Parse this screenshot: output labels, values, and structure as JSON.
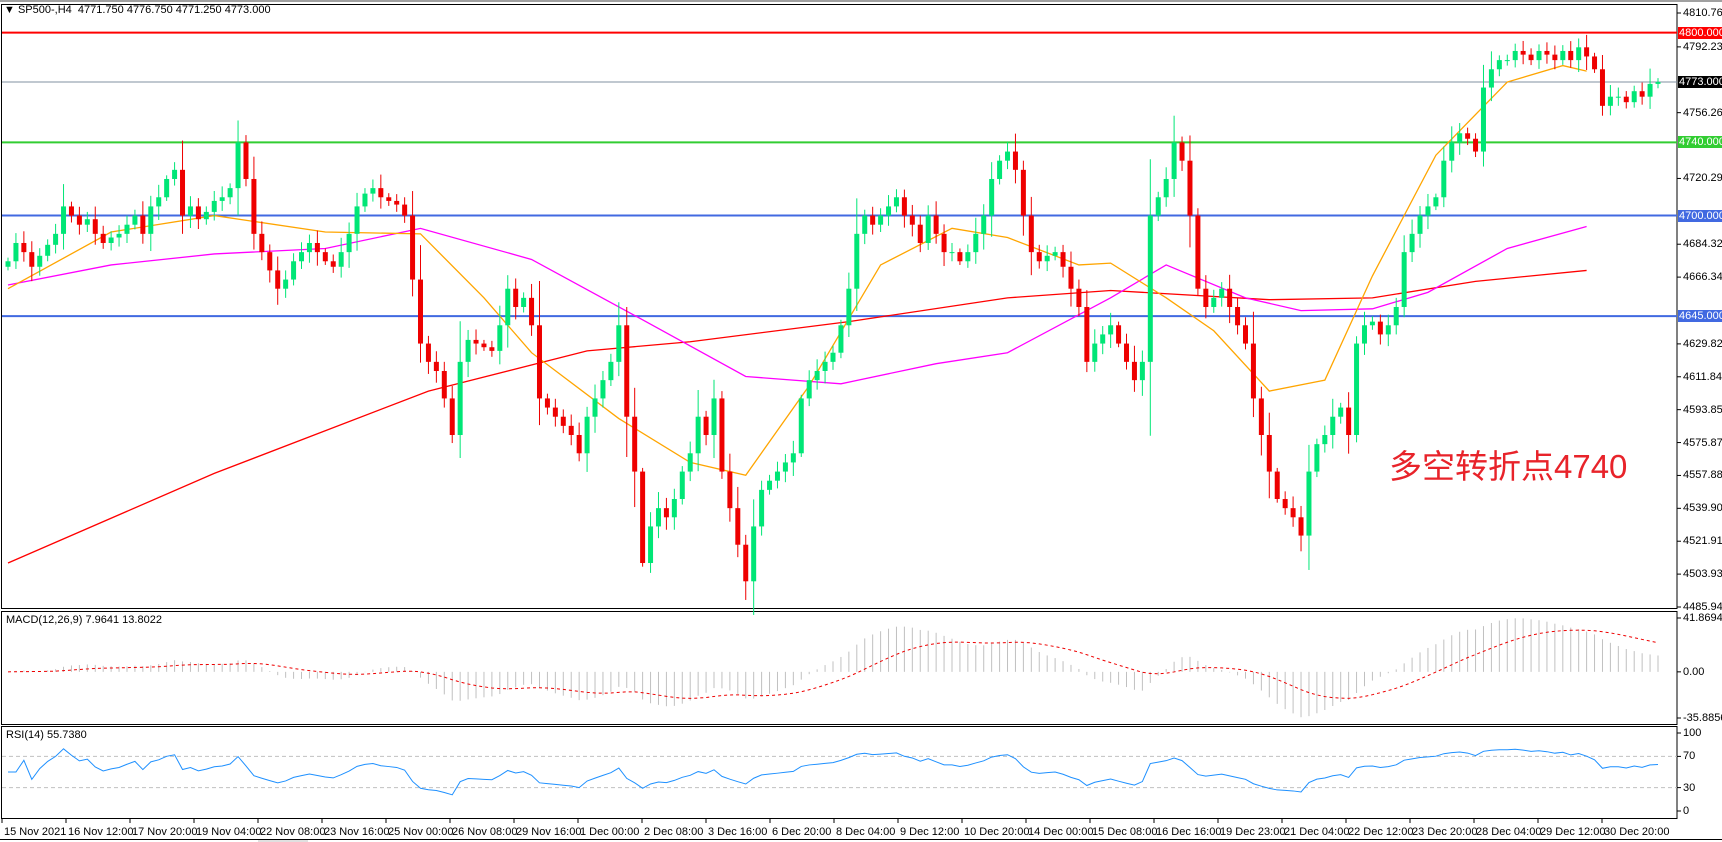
{
  "header": {
    "symbol": "SP500-,H4",
    "ohlc": "4771.750 4776.750 4771.250 4773.000"
  },
  "annotation": "多空转折点4740",
  "colors": {
    "bull": "#00e676",
    "bear": "#ee0000",
    "ma_fast": "#ffa500",
    "ma_mid": "#ff00ff",
    "ma_slow": "#ff0000",
    "macd_hist": "#c0c0c0",
    "macd_signal": "#ee0000",
    "rsi": "#1e90ff"
  },
  "chart_data": [
    {
      "type": "candlestick",
      "title": "SP500-,H4",
      "ylim": [
        4485.945,
        4810.765
      ],
      "y_ticks": [
        "4810.765",
        "4792.235",
        "4756.265",
        "4720.295",
        "4684.325",
        "4666.340",
        "4629.825",
        "4611.840",
        "4593.855",
        "4575.870",
        "4557.885",
        "4539.900",
        "4521.915",
        "4503.930",
        "4485.945"
      ],
      "x_ticks": [
        "15 Nov 2021",
        "16 Nov 12:00",
        "17 Nov 20:00",
        "19 Nov 04:00",
        "22 Nov 08:00",
        "23 Nov 16:00",
        "25 Nov 00:00",
        "26 Nov 08:00",
        "29 Nov 16:00",
        "1 Dec 00:00",
        "2 Dec 08:00",
        "3 Dec 16:00",
        "6 Dec 20:00",
        "8 Dec 04:00",
        "9 Dec 12:00",
        "10 Dec 20:00",
        "14 Dec 00:00",
        "15 Dec 08:00",
        "16 Dec 16:00",
        "19 Dec 23:00",
        "21 Dec 04:00",
        "22 Dec 12:00",
        "23 Dec 20:00",
        "28 Dec 04:00",
        "29 Dec 12:00",
        "30 Dec 20:00"
      ],
      "closes": [
        4675,
        4685,
        4680,
        4672,
        4678,
        4684,
        4690,
        4705,
        4700,
        4695,
        4698,
        4690,
        4685,
        4688,
        4690,
        4695,
        4700,
        4690,
        4705,
        4710,
        4720,
        4725,
        4700,
        4705,
        4698,
        4702,
        4708,
        4710,
        4715,
        4740,
        4720,
        4690,
        4680,
        4670,
        4660,
        4665,
        4675,
        4680,
        4685,
        4680,
        4675,
        4672,
        4680,
        4690,
        4705,
        4712,
        4715,
        4710,
        4708,
        4706,
        4700,
        4665,
        4630,
        4620,
        4615,
        4600,
        4580,
        4620,
        4632,
        4630,
        4628,
        4626,
        4640,
        4660,
        4650,
        4655,
        4640,
        4600,
        4595,
        4590,
        4585,
        4580,
        4570,
        4590,
        4600,
        4610,
        4620,
        4640,
        4590,
        4560,
        4510,
        4530,
        4540,
        4535,
        4545,
        4560,
        4570,
        4590,
        4580,
        4600,
        4560,
        4540,
        4520,
        4500,
        4530,
        4550,
        4555,
        4560,
        4565,
        4570,
        4600,
        4610,
        4615,
        4620,
        4625,
        4640,
        4660,
        4690,
        4700,
        4695,
        4700,
        4705,
        4710,
        4700,
        4695,
        4685,
        4700,
        4690,
        4680,
        4680,
        4675,
        4680,
        4690,
        4700,
        4720,
        4730,
        4735,
        4725,
        4700,
        4680,
        4675,
        4678,
        4680,
        4672,
        4660,
        4650,
        4620,
        4630,
        4635,
        4640,
        4630,
        4620,
        4610,
        4620,
        4700,
        4710,
        4720,
        4740,
        4730,
        4700,
        4660,
        4650,
        4655,
        4660,
        4650,
        4640,
        4630,
        4600,
        4580,
        4560,
        4545,
        4540,
        4535,
        4525,
        4560,
        4575,
        4580,
        4590,
        4595,
        4580,
        4630,
        4640,
        4642,
        4635,
        4640,
        4650,
        4680,
        4690,
        4700,
        4705,
        4710,
        4730,
        4740,
        4745,
        4742,
        4735,
        4770,
        4780,
        4785,
        4785,
        4790,
        4788,
        4785,
        4790,
        4788,
        4785,
        4790,
        4785,
        4792,
        4787,
        4780,
        4760,
        4765,
        4765,
        4762,
        4768,
        4765,
        4772,
        4773
      ],
      "moving_averages": [
        {
          "color_key": "ma_slow",
          "points": [
            [
              0,
              4510
            ],
            [
              26,
              4559
            ],
            [
              53,
              4604
            ],
            [
              73,
              4626
            ],
            [
              86,
              4631
            ],
            [
              106,
              4642
            ],
            [
              126,
              4655
            ],
            [
              139,
              4659
            ],
            [
              159,
              4654
            ],
            [
              172,
              4655
            ],
            [
              185,
              4664
            ],
            [
              199,
              4670
            ]
          ]
        },
        {
          "color_key": "ma_mid",
          "points": [
            [
              0,
              4662
            ],
            [
              13,
              4673
            ],
            [
              26,
              4679
            ],
            [
              40,
              4682
            ],
            [
              52,
              4693
            ],
            [
              66,
              4676
            ],
            [
              80,
              4643
            ],
            [
              93,
              4612
            ],
            [
              105,
              4608
            ],
            [
              117,
              4619
            ],
            [
              126,
              4625
            ],
            [
              139,
              4655
            ],
            [
              146,
              4673
            ],
            [
              156,
              4655
            ],
            [
              163,
              4648
            ],
            [
              172,
              4649
            ],
            [
              179,
              4658
            ],
            [
              189,
              4682
            ],
            [
              199,
              4694
            ]
          ]
        },
        {
          "color_key": "ma_fast",
          "points": [
            [
              0,
              4660
            ],
            [
              13,
              4691
            ],
            [
              26,
              4700
            ],
            [
              40,
              4691
            ],
            [
              52,
              4690
            ],
            [
              60,
              4655
            ],
            [
              66,
              4625
            ],
            [
              77,
              4589
            ],
            [
              86,
              4565
            ],
            [
              93,
              4558
            ],
            [
              101,
              4607
            ],
            [
              110,
              4673
            ],
            [
              119,
              4693
            ],
            [
              126,
              4688
            ],
            [
              135,
              4673
            ],
            [
              139,
              4674
            ],
            [
              146,
              4655
            ],
            [
              152,
              4637
            ],
            [
              159,
              4604
            ],
            [
              166,
              4610
            ],
            [
              172,
              4667
            ],
            [
              180,
              4733
            ],
            [
              189,
              4773
            ],
            [
              196,
              4782
            ],
            [
              199,
              4779
            ]
          ]
        }
      ],
      "horizontal_lines": [
        {
          "label": "4800.000",
          "value": 4800,
          "color": "#ff0000"
        },
        {
          "label": "4773.000",
          "value": 4773,
          "color": "#000000",
          "line_color": "#8090a0"
        },
        {
          "label": "4740.000",
          "value": 4740,
          "color": "#32cd32"
        },
        {
          "label": "4700.000",
          "value": 4700,
          "color": "#4169e1"
        },
        {
          "label": "4645.000",
          "value": 4645,
          "color": "#4169e1"
        }
      ]
    },
    {
      "type": "bar",
      "title": "MACD(12,26,9) 7.9641 13.8022",
      "ylim": [
        -35.8856,
        41.8694
      ],
      "y_ticks": [
        "41.8694",
        "0.00",
        "-35.8856"
      ]
    },
    {
      "type": "line",
      "title": "RSI(14) 55.7380",
      "ylim": [
        0,
        100
      ],
      "y_ticks": [
        "100",
        "70",
        "30",
        "0"
      ],
      "levels": [
        70,
        30
      ]
    }
  ]
}
